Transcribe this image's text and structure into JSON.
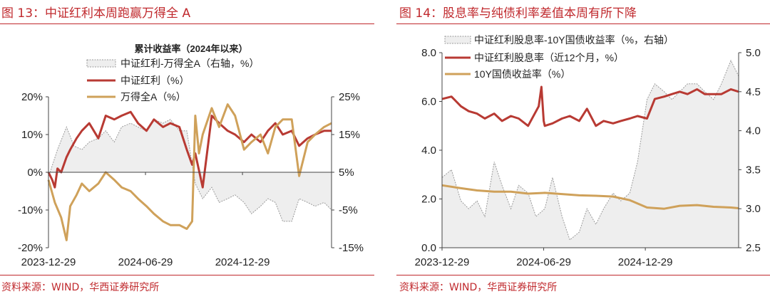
{
  "left": {
    "figure_title": "图 13：中证红利本周跑赢万得全 A",
    "source": "资料来源：WIND，华西证券研究所"
  },
  "right": {
    "figure_title": "图 14：股息率与纯债利率差值本周有所下降",
    "source": "资料来源：WIND，华西证券研究所"
  },
  "chart_data": [
    {
      "type": "line",
      "title": "累计收益率（2024年以来）",
      "x_tick_labels": [
        "2023-12-29",
        "2024-06-29",
        "2024-12-29"
      ],
      "left_axis": {
        "ticks": [
          "-20%",
          "-10%",
          "0%",
          "10%",
          "20%"
        ],
        "ylim": [
          -20,
          20
        ],
        "unit": "%"
      },
      "right_axis": {
        "ticks": [
          "-15%",
          "-5%",
          "5%",
          "15%",
          "25%"
        ],
        "ylim": [
          -15,
          25
        ],
        "unit": "%"
      },
      "legend": [
        "中证红利-万得全A（右轴，%）",
        "中证红利（%）",
        "万得全A（%）"
      ],
      "colors": {
        "spread": "#9a9a9a",
        "dividend": "#b83a33",
        "wind_a": "#cfa15a"
      },
      "series": [
        {
          "name": "中证红利-万得全A（右轴，%）",
          "axis": "right",
          "style": "area",
          "x": [
            "2024-01-01",
            "2024-01-15",
            "2024-02-01",
            "2024-02-15",
            "2024-03-01",
            "2024-03-15",
            "2024-04-01",
            "2024-04-15",
            "2024-05-01",
            "2024-05-15",
            "2024-06-01",
            "2024-06-15",
            "2024-07-01",
            "2024-07-15",
            "2024-08-01",
            "2024-08-15",
            "2024-09-01",
            "2024-09-15",
            "2024-10-01",
            "2024-10-15",
            "2024-11-01",
            "2024-11-15",
            "2024-12-01",
            "2024-12-15",
            "2025-01-01",
            "2025-01-15",
            "2025-02-01",
            "2025-02-15",
            "2025-03-01",
            "2025-03-15",
            "2025-04-01",
            "2025-04-15",
            "2025-05-01",
            "2025-05-15",
            "2025-06-01",
            "2025-06-15"
          ],
          "values": [
            5,
            11,
            17,
            12,
            11,
            13,
            14,
            16,
            13,
            17,
            18,
            17,
            16,
            19,
            18,
            19,
            16,
            16,
            2,
            -2,
            1,
            -3,
            -2,
            -1,
            -3,
            -6,
            -4,
            -2,
            -3,
            -8,
            -8,
            -2,
            -3,
            -4,
            -3,
            -5
          ]
        },
        {
          "name": "中证红利（%）",
          "axis": "left",
          "style": "line",
          "x": [
            "2023-12-29",
            "2024-01-05",
            "2024-01-10",
            "2024-01-15",
            "2024-01-22",
            "2024-02-01",
            "2024-02-08",
            "2024-02-20",
            "2024-03-01",
            "2024-03-15",
            "2024-04-01",
            "2024-04-15",
            "2024-05-01",
            "2024-05-15",
            "2024-06-01",
            "2024-06-15",
            "2024-07-01",
            "2024-07-15",
            "2024-08-01",
            "2024-08-15",
            "2024-09-01",
            "2024-09-15",
            "2024-09-25",
            "2024-10-01",
            "2024-10-15",
            "2024-11-01",
            "2024-11-15",
            "2024-12-01",
            "2024-12-15",
            "2025-01-01",
            "2025-01-15",
            "2025-02-01",
            "2025-02-15",
            "2025-03-01",
            "2025-03-15",
            "2025-04-01",
            "2025-04-15",
            "2025-05-01",
            "2025-05-15",
            "2025-06-01",
            "2025-06-15"
          ],
          "values": [
            0,
            -2,
            -4,
            1,
            0,
            4,
            6,
            9,
            11,
            13,
            9,
            15,
            14,
            15,
            16,
            13,
            11,
            14,
            12,
            13,
            12,
            6,
            2,
            5,
            -4,
            15,
            13,
            11,
            10,
            8,
            10,
            8,
            11,
            13,
            10,
            11,
            7,
            9,
            10,
            11,
            11
          ]
        },
        {
          "name": "万得全A（%）",
          "axis": "left",
          "style": "line",
          "x": [
            "2023-12-29",
            "2024-01-10",
            "2024-01-22",
            "2024-02-01",
            "2024-02-08",
            "2024-02-20",
            "2024-03-01",
            "2024-03-15",
            "2024-04-01",
            "2024-04-15",
            "2024-05-01",
            "2024-05-15",
            "2024-06-01",
            "2024-06-15",
            "2024-07-01",
            "2024-07-15",
            "2024-08-01",
            "2024-08-15",
            "2024-09-01",
            "2024-09-15",
            "2024-09-25",
            "2024-10-01",
            "2024-10-08",
            "2024-10-15",
            "2024-11-01",
            "2024-11-15",
            "2024-12-01",
            "2024-12-15",
            "2025-01-01",
            "2025-01-15",
            "2025-02-01",
            "2025-02-15",
            "2025-03-01",
            "2025-03-15",
            "2025-04-01",
            "2025-04-15",
            "2025-05-01",
            "2025-05-15",
            "2025-06-01",
            "2025-06-15"
          ],
          "values": [
            -2,
            -8,
            -12,
            -18,
            -9,
            -6,
            -3,
            -5,
            -3,
            0,
            -2,
            -4,
            -5,
            -7,
            -9,
            -11,
            -13,
            -14,
            -14,
            -15,
            -13,
            15,
            5,
            10,
            17,
            12,
            18,
            15,
            6,
            8,
            10,
            5,
            12,
            14,
            14,
            -1,
            8,
            10,
            12,
            13
          ]
        }
      ]
    },
    {
      "type": "line",
      "x_tick_labels": [
        "2023-12-29",
        "2024-06-29",
        "2024-12-29"
      ],
      "left_axis": {
        "ticks": [
          "0.0",
          "2.0",
          "4.0",
          "6.0",
          "8.0"
        ],
        "ylim": [
          0,
          8
        ]
      },
      "right_axis": {
        "ticks": [
          "2.5",
          "3.0",
          "3.5",
          "4.0",
          "4.5",
          "5.0"
        ],
        "ylim": [
          2.5,
          5.0
        ]
      },
      "legend": [
        "中证红利股息率-10Y国债收益率（%，右轴）",
        "中证红利股息率（近12个月，%）",
        "10Y国债收益率（%）"
      ],
      "colors": {
        "spread": "#9a9a9a",
        "dividend_yield": "#b83a33",
        "bond_yield": "#cfa15a"
      },
      "series": [
        {
          "name": "中证红利股息率-10Y国债收益率（%，右轴）",
          "axis": "right",
          "style": "area",
          "x": [
            "2023-12-29",
            "2024-01-15",
            "2024-02-01",
            "2024-02-15",
            "2024-03-01",
            "2024-03-15",
            "2024-04-01",
            "2024-04-15",
            "2024-05-01",
            "2024-05-15",
            "2024-06-01",
            "2024-06-15",
            "2024-07-01",
            "2024-07-15",
            "2024-08-01",
            "2024-08-15",
            "2024-09-01",
            "2024-09-15",
            "2024-10-01",
            "2024-10-15",
            "2024-11-01",
            "2024-11-15",
            "2024-12-01",
            "2024-12-15",
            "2025-01-01",
            "2025-01-15",
            "2025-02-01",
            "2025-02-15",
            "2025-03-01",
            "2025-03-15",
            "2025-04-01",
            "2025-04-15",
            "2025-05-01",
            "2025-05-15",
            "2025-06-01",
            "2025-06-15"
          ],
          "values": [
            3.4,
            3.5,
            3.1,
            3.0,
            3.1,
            2.9,
            3.6,
            3.3,
            3.0,
            3.3,
            3.2,
            2.9,
            3.0,
            3.4,
            2.9,
            2.6,
            2.7,
            3.0,
            2.8,
            3.0,
            3.2,
            3.1,
            3.2,
            3.6,
            4.4,
            4.6,
            4.5,
            4.4,
            4.5,
            4.6,
            4.6,
            4.5,
            4.4,
            4.6,
            4.9,
            4.7
          ]
        },
        {
          "name": "中证红利股息率（近12个月，%）",
          "axis": "left",
          "style": "line",
          "x": [
            "2023-12-29",
            "2024-01-15",
            "2024-02-01",
            "2024-02-15",
            "2024-03-01",
            "2024-03-15",
            "2024-04-01",
            "2024-04-15",
            "2024-05-01",
            "2024-05-15",
            "2024-06-01",
            "2024-06-20",
            "2024-06-25",
            "2024-06-29",
            "2024-07-01",
            "2024-07-15",
            "2024-08-01",
            "2024-08-15",
            "2024-09-01",
            "2024-09-15",
            "2024-10-01",
            "2024-10-15",
            "2024-11-01",
            "2024-11-15",
            "2024-12-01",
            "2024-12-15",
            "2025-01-01",
            "2025-01-15",
            "2025-02-01",
            "2025-02-15",
            "2025-03-01",
            "2025-03-15",
            "2025-04-01",
            "2025-04-15",
            "2025-05-01",
            "2025-05-15",
            "2025-06-01",
            "2025-06-15"
          ],
          "values": [
            6.1,
            6.2,
            5.8,
            5.6,
            5.5,
            5.3,
            5.5,
            5.2,
            5.4,
            5.3,
            5.0,
            5.8,
            6.6,
            5.2,
            5.0,
            5.1,
            5.3,
            5.4,
            5.2,
            5.7,
            5.0,
            5.2,
            5.1,
            5.2,
            5.3,
            5.4,
            5.3,
            6.1,
            6.2,
            6.3,
            6.4,
            6.3,
            6.5,
            6.3,
            6.3,
            6.3,
            6.5,
            6.4
          ]
        },
        {
          "name": "10Y国债收益率（%）",
          "axis": "left",
          "style": "line",
          "x": [
            "2023-12-29",
            "2024-02-01",
            "2024-03-01",
            "2024-04-01",
            "2024-05-01",
            "2024-06-01",
            "2024-07-01",
            "2024-08-01",
            "2024-09-01",
            "2024-10-01",
            "2024-11-01",
            "2024-12-01",
            "2025-01-01",
            "2025-02-01",
            "2025-03-01",
            "2025-04-01",
            "2025-05-01",
            "2025-06-01",
            "2025-06-15"
          ],
          "values": [
            2.56,
            2.44,
            2.35,
            2.3,
            2.3,
            2.22,
            2.25,
            2.2,
            2.15,
            2.13,
            2.1,
            1.95,
            1.65,
            1.6,
            1.72,
            1.75,
            1.68,
            1.65,
            1.62
          ]
        }
      ]
    }
  ]
}
